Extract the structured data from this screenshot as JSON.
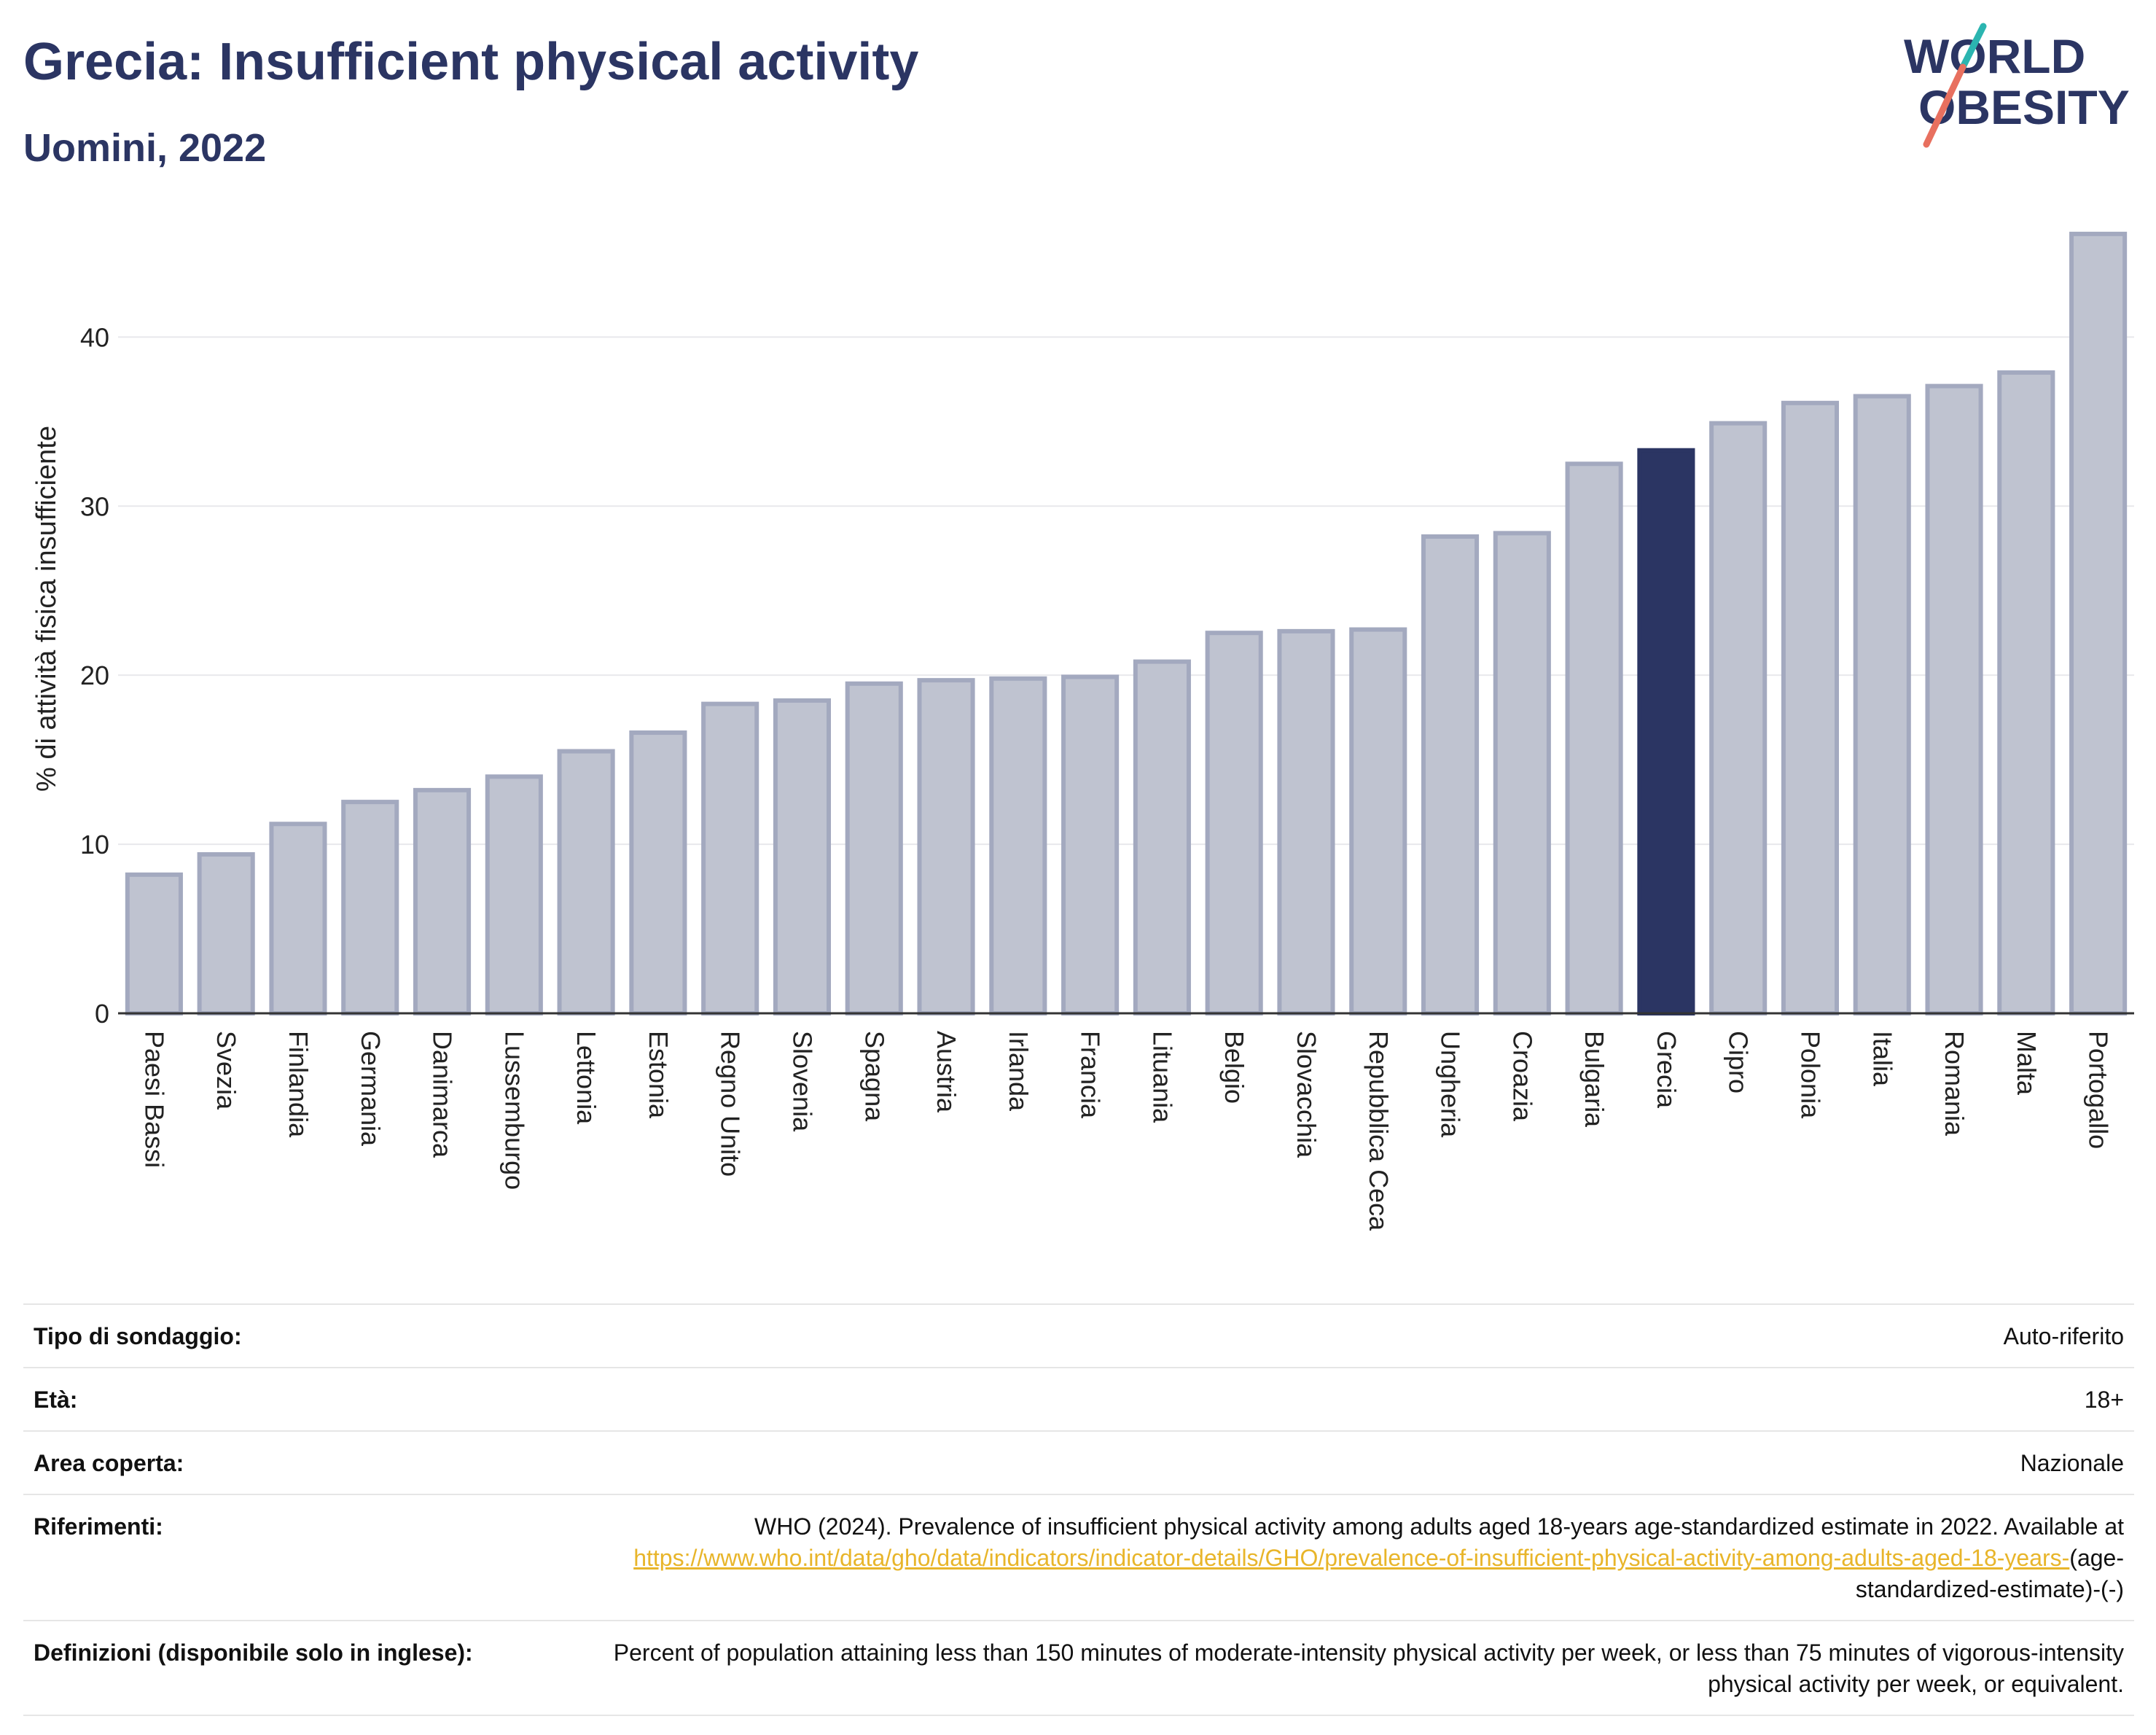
{
  "header": {
    "title": "Grecia: Insufficient physical activity",
    "subtitle": "Uomini, 2022"
  },
  "logo": {
    "line1": "WORLD",
    "line2": "OBESITY",
    "colors": {
      "text": "#2b3563",
      "slash_teal": "#2bb5b0",
      "slash_coral": "#e8705f"
    }
  },
  "chart_data": {
    "type": "bar",
    "title": "Grecia: Insufficient physical activity",
    "subtitle": "Uomini, 2022",
    "xlabel": "",
    "ylabel": "% di attività fisica insufficiente",
    "ylim": [
      0,
      47
    ],
    "yticks": [
      0,
      10,
      20,
      30,
      40
    ],
    "grid": true,
    "highlight": "Grecia",
    "colors": {
      "bar": "#bfc3d0",
      "bar_border": "#a3a9bf",
      "highlight": "#2b3563"
    },
    "categories": [
      "Paesi Bassi",
      "Svezia",
      "Finlandia",
      "Germania",
      "Danimarca",
      "Lussemburgo",
      "Lettonia",
      "Estonia",
      "Regno Unito",
      "Slovenia",
      "Spagna",
      "Austria",
      "Irlanda",
      "Francia",
      "Lituania",
      "Belgio",
      "Slovacchia",
      "Repubblica Ceca",
      "Ungheria",
      "Croazia",
      "Bulgaria",
      "Grecia",
      "Cipro",
      "Polonia",
      "Italia",
      "Romania",
      "Malta",
      "Portogallo"
    ],
    "values": [
      8.2,
      9.4,
      11.2,
      12.5,
      13.2,
      14.0,
      15.5,
      16.6,
      18.3,
      18.5,
      19.5,
      19.7,
      19.8,
      19.9,
      20.8,
      22.5,
      22.6,
      22.7,
      28.2,
      28.4,
      32.5,
      33.3,
      34.9,
      36.1,
      36.5,
      37.1,
      37.9,
      46.1
    ]
  },
  "info": {
    "rows": [
      {
        "label": "Tipo di sondaggio:",
        "value": "Auto-riferito"
      },
      {
        "label": "Età:",
        "value": "18+"
      },
      {
        "label": "Area coperta:",
        "value": "Nazionale"
      },
      {
        "label": "Riferimenti:",
        "value": "WHO (2024). Prevalence of insufficient physical activity among adults aged 18-years age-standardized estimate in 2022. Available at ",
        "link": "https://www.who.int/data/gho/data/indicators/indicator-details/GHO/prevalence-of-insufficient-physical-activity-among-adults-aged-18-years-",
        "value_after": "(age-standardized-estimate)-(-)"
      },
      {
        "label": "Definizioni (disponibile solo in inglese):",
        "value": "Percent of population attaining less than 150 minutes of moderate-intensity physical activity per week, or less than 75 minutes of vigorous-intensity physical activity per week, or equivalent."
      }
    ]
  }
}
